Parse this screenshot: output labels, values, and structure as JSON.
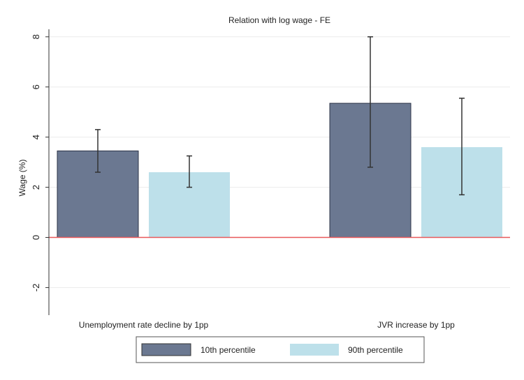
{
  "chart_data": {
    "type": "bar",
    "title": "Relation with log wage - FE",
    "xlabel": "",
    "ylabel": "Wage (%)",
    "ylim": [
      -3.1,
      8.3
    ],
    "yticks": [
      -2,
      0,
      2,
      4,
      6,
      8
    ],
    "yticklabels": [
      "-2",
      "0",
      "2",
      "4",
      "6",
      "8"
    ],
    "grid": true,
    "reference_line": {
      "y": 0,
      "color": "#e8585a"
    },
    "categories": [
      "Unemployment rate decline by 1pp",
      "JVR increase by 1pp"
    ],
    "series": [
      {
        "name": "10th percentile",
        "color": "#6b7891",
        "values": [
          3.45,
          5.35
        ],
        "ci_low": [
          2.6,
          2.8
        ],
        "ci_high": [
          4.3,
          8.0
        ]
      },
      {
        "name": "90th percentile",
        "color": "#bde0ea",
        "values": [
          2.6,
          3.6
        ],
        "ci_low": [
          2.0,
          1.7
        ],
        "ci_high": [
          3.25,
          5.55
        ]
      }
    ],
    "legend_position": "bottom-center"
  }
}
